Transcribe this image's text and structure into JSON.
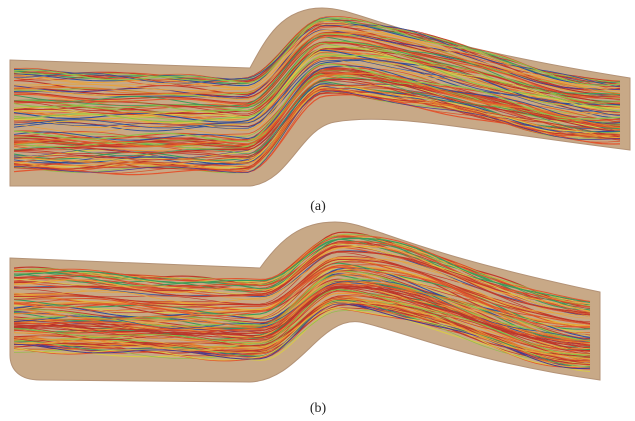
{
  "figures": [
    {
      "label": "(a)"
    },
    {
      "label": "(b)"
    }
  ]
}
